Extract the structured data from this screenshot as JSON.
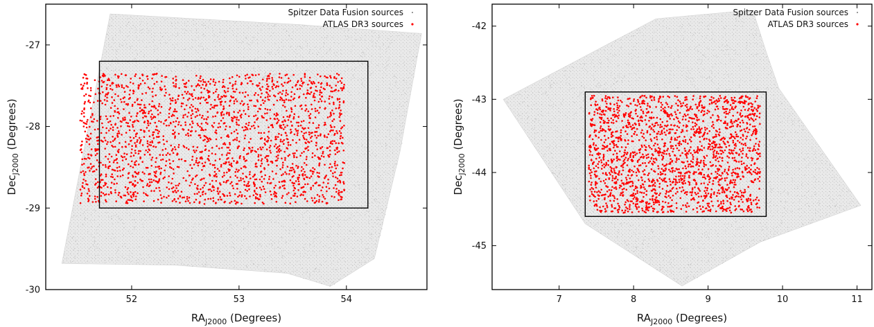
{
  "chart_data": [
    {
      "type": "scatter",
      "xlim": [
        51.2,
        54.75
      ],
      "ylim": [
        -30,
        -26.5
      ],
      "x_ticks": [
        52,
        53,
        54
      ],
      "y_ticks": [
        -27,
        -28,
        -29,
        -30
      ],
      "xlabel_main": "RA",
      "xlabel_sub": "J2000",
      "xlabel_rest": " (Degrees)",
      "ylabel_main": "Dec",
      "ylabel_sub": "J2000",
      "ylabel_rest": " (Degrees)",
      "legend": [
        "Spitzer Data Fusion sources",
        "ATLAS DR3 sources"
      ],
      "legend_position": "top-right",
      "background_polygon": [
        [
          51.35,
          -29.68
        ],
        [
          52.4,
          -29.7
        ],
        [
          53.45,
          -29.8
        ],
        [
          53.85,
          -29.96
        ],
        [
          54.26,
          -29.62
        ],
        [
          54.5,
          -28.3
        ],
        [
          54.7,
          -26.86
        ],
        [
          53.55,
          -26.75
        ],
        [
          52.6,
          -26.68
        ],
        [
          51.8,
          -26.62
        ]
      ],
      "atlas_region": [
        [
          51.52,
          -27.35
        ],
        [
          53.98,
          -27.35
        ],
        [
          53.98,
          -28.95
        ],
        [
          51.52,
          -28.95
        ]
      ],
      "box": {
        "x": [
          51.7,
          54.2
        ],
        "y": [
          -29.0,
          -27.2
        ]
      },
      "atlas_count": 2200,
      "colors": {
        "spitzer": "#bbbbbb",
        "atlas": "#ff0000",
        "box": "#000000"
      }
    },
    {
      "type": "scatter",
      "xlim": [
        6.1,
        11.2
      ],
      "ylim": [
        -45.6,
        -41.7
      ],
      "x_ticks": [
        7,
        8,
        9,
        10,
        11
      ],
      "y_ticks": [
        -42,
        -43,
        -44,
        -45
      ],
      "xlabel_main": "RA",
      "xlabel_sub": "J2000",
      "xlabel_rest": " (Degrees)",
      "ylabel_main": "Dec",
      "ylabel_sub": "J2000",
      "ylabel_rest": " (Degrees)",
      "legend": [
        "Spitzer Data Fusion sources",
        "ATLAS DR3 sources"
      ],
      "legend_position": "top-right",
      "background_polygon": [
        [
          6.25,
          -43.0
        ],
        [
          8.3,
          -41.9
        ],
        [
          9.6,
          -41.78
        ],
        [
          9.78,
          -42.35
        ],
        [
          9.95,
          -42.85
        ],
        [
          11.05,
          -44.45
        ],
        [
          9.7,
          -44.95
        ],
        [
          8.65,
          -45.55
        ],
        [
          7.35,
          -44.7
        ]
      ],
      "atlas_region": [
        [
          7.4,
          -42.95
        ],
        [
          9.7,
          -42.95
        ],
        [
          9.7,
          -44.55
        ],
        [
          7.4,
          -44.55
        ]
      ],
      "box": {
        "x": [
          7.35,
          9.78
        ],
        "y": [
          -44.6,
          -42.9
        ]
      },
      "atlas_count": 2000,
      "colors": {
        "spitzer": "#bbbbbb",
        "atlas": "#ff0000",
        "box": "#000000"
      }
    }
  ]
}
